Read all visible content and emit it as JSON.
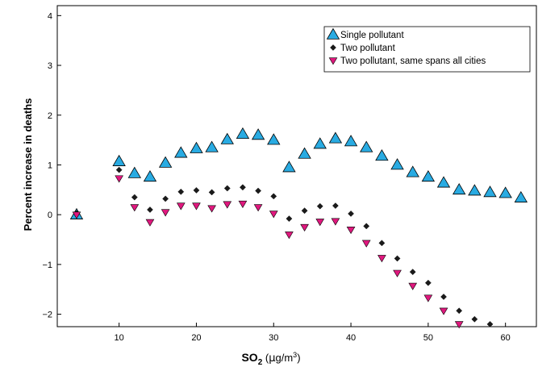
{
  "chart_data": {
    "type": "scatter",
    "title": "",
    "xlabel_main": "SO",
    "xlabel_sub": "2",
    "xlabel_unit_open": " (",
    "xlabel_unit_mu": "µ",
    "xlabel_unit_g": "g/m",
    "xlabel_unit_sup": "3",
    "xlabel_unit_close": ")",
    "ylabel": "Percent increase in deaths",
    "xlim": [
      2,
      64
    ],
    "ylim": [
      -2.25,
      4.2
    ],
    "xticks": [
      10,
      20,
      30,
      40,
      50,
      60
    ],
    "yticks": [
      -2,
      -1,
      0,
      1,
      2,
      3,
      4
    ],
    "ytick_labels": [
      "−2",
      "−1",
      "0",
      "1",
      "2",
      "3",
      "4"
    ],
    "grid": false,
    "legend_position": "top-right",
    "series": [
      {
        "name": "Single pollutant",
        "marker": "triangle-up",
        "color": "#29abe2",
        "x": [
          4.5,
          10,
          12,
          14,
          16,
          18,
          20,
          22,
          24,
          26,
          28,
          30,
          32,
          34,
          36,
          38,
          40,
          42,
          44,
          46,
          48,
          50,
          52,
          54,
          56,
          58,
          60,
          62
        ],
        "y": [
          0.0,
          1.07,
          0.83,
          0.76,
          1.04,
          1.24,
          1.33,
          1.35,
          1.51,
          1.62,
          1.6,
          1.5,
          0.95,
          1.22,
          1.42,
          1.53,
          1.47,
          1.35,
          1.18,
          1.0,
          0.85,
          0.76,
          0.64,
          0.5,
          0.48,
          0.45,
          0.43,
          0.34
        ]
      },
      {
        "name": "Two pollutant",
        "marker": "diamond",
        "color": "#1a1a1a",
        "x": [
          4.5,
          10,
          12,
          14,
          16,
          18,
          20,
          22,
          24,
          26,
          28,
          30,
          32,
          34,
          36,
          38,
          40,
          42,
          44,
          46,
          48,
          50,
          52,
          54,
          56,
          58
        ],
        "y": [
          0.03,
          0.9,
          0.35,
          0.1,
          0.32,
          0.46,
          0.49,
          0.45,
          0.53,
          0.55,
          0.48,
          0.37,
          -0.08,
          0.08,
          0.17,
          0.18,
          0.02,
          -0.23,
          -0.57,
          -0.88,
          -1.15,
          -1.37,
          -1.65,
          -1.93,
          -2.1,
          -2.2
        ]
      },
      {
        "name": "Two pollutant, same spans all cities",
        "marker": "triangle-down",
        "color": "#e0187e",
        "x": [
          4.5,
          10,
          12,
          14,
          16,
          18,
          20,
          22,
          24,
          26,
          28,
          30,
          32,
          34,
          36,
          38,
          40,
          42,
          44,
          46,
          48,
          50,
          52,
          54
        ],
        "y": [
          0.0,
          0.73,
          0.15,
          -0.15,
          0.05,
          0.18,
          0.18,
          0.13,
          0.21,
          0.22,
          0.15,
          0.02,
          -0.4,
          -0.25,
          -0.14,
          -0.13,
          -0.3,
          -0.57,
          -0.87,
          -1.17,
          -1.43,
          -1.67,
          -1.93,
          -2.2
        ]
      }
    ]
  }
}
